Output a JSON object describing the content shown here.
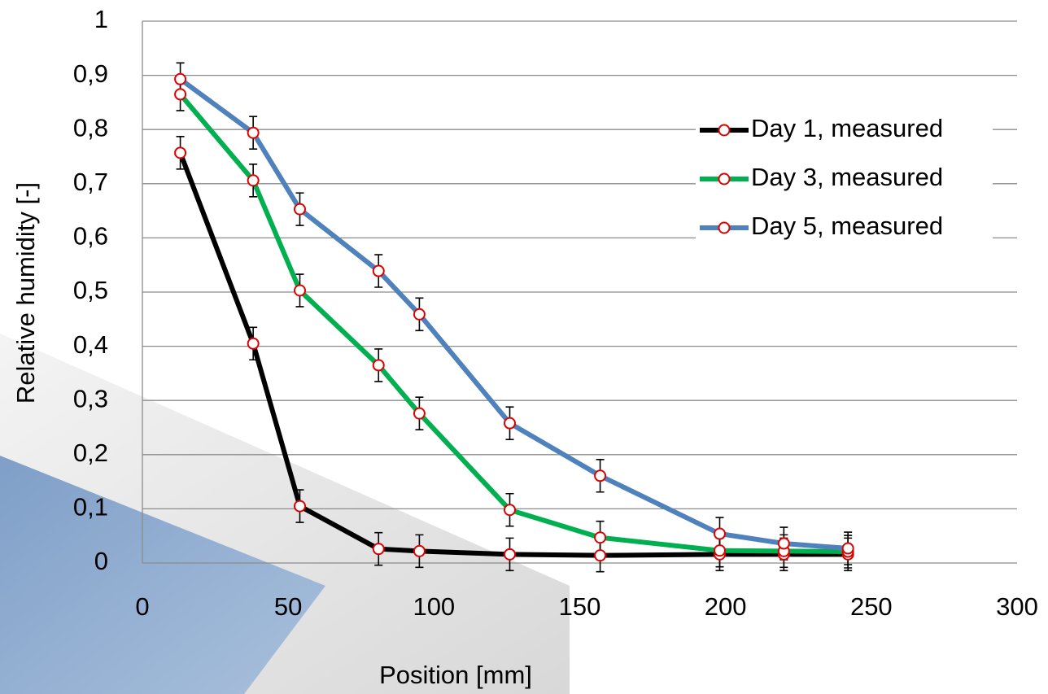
{
  "chart_data": {
    "type": "line",
    "x_label": "Position [mm]",
    "y_label": "Relative humidity [-]",
    "x": [
      13,
      38,
      54,
      81,
      95,
      126,
      157,
      198,
      220,
      242
    ],
    "series": [
      {
        "name": "Day 1, measured",
        "color": "#000000",
        "values": [
          0.757,
          0.405,
          0.105,
          0.026,
          0.022,
          0.016,
          0.014,
          0.016,
          0.016,
          0.016
        ],
        "error": 0.03
      },
      {
        "name": "Day 3, measured",
        "color": "#00b050",
        "values": [
          0.865,
          0.706,
          0.503,
          0.365,
          0.276,
          0.098,
          0.047,
          0.023,
          0.022,
          0.021
        ],
        "error": 0.03
      },
      {
        "name": "Day 5, measured",
        "color": "#4f81bd",
        "values": [
          0.893,
          0.794,
          0.653,
          0.539,
          0.459,
          0.258,
          0.161,
          0.054,
          0.036,
          0.027
        ],
        "error": 0.03
      }
    ],
    "marker_fill": "#ffffff",
    "marker_stroke": "#e00000",
    "xlim": [
      0,
      300
    ],
    "xticks": [
      0,
      50,
      100,
      150,
      200,
      250,
      300
    ],
    "ylim": [
      0,
      1
    ],
    "yticks": [
      0,
      {
        "value": 0.1,
        "label": "0,1"
      },
      {
        "value": 0.2,
        "label": "0,2"
      },
      {
        "value": 0.3,
        "label": "0,3"
      },
      {
        "value": 0.4,
        "label": "0,4"
      },
      {
        "value": 0.5,
        "label": "0,5"
      },
      {
        "value": 0.6,
        "label": "0,6"
      },
      {
        "value": 0.7,
        "label": "0,7"
      },
      {
        "value": 0.8,
        "label": "0,8"
      },
      {
        "value": 0.9,
        "label": "0,9"
      },
      1
    ],
    "grid": true,
    "legend": "upper right"
  }
}
